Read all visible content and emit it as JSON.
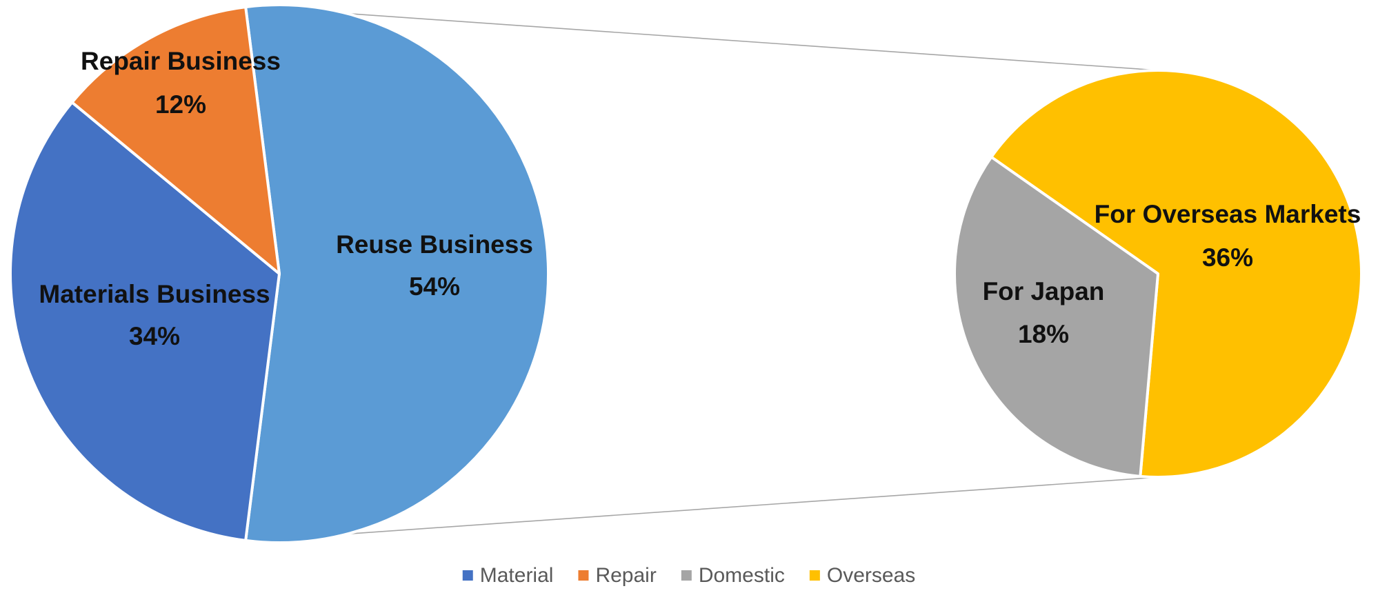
{
  "chart_data": {
    "type": "pie",
    "subtype": "pie-of-pie",
    "main_pie": {
      "slices": [
        {
          "key": "reuse",
          "label": "Reuse Business",
          "value": 54,
          "value_label": "54%",
          "color": "#5B9BD5"
        },
        {
          "key": "materials",
          "label": "Materials Business",
          "value": 34,
          "value_label": "34%",
          "color": "#4472C4"
        },
        {
          "key": "repair",
          "label": "Repair Business",
          "value": 12,
          "value_label": "12%",
          "color": "#ED7D31"
        }
      ]
    },
    "secondary_pie": {
      "breakout_of": "Reuse Business",
      "slices": [
        {
          "key": "overseas",
          "label": "For Overseas Markets",
          "value": 36,
          "value_label": "36%",
          "color": "#FFC000"
        },
        {
          "key": "japan",
          "label": "For Japan",
          "value": 18,
          "value_label": "18%",
          "color": "#A5A5A5"
        }
      ]
    },
    "legend": {
      "position": "bottom",
      "entries": [
        {
          "label": "Material",
          "color": "#4472C4"
        },
        {
          "label": "Repair",
          "color": "#ED7D31"
        },
        {
          "label": "Domestic",
          "color": "#A5A5A5"
        },
        {
          "label": "Overseas",
          "color": "#FFC000"
        }
      ]
    }
  }
}
